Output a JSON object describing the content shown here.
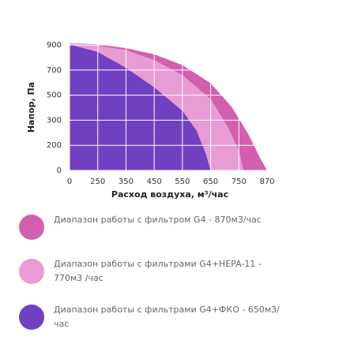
{
  "chart_data": {
    "type": "area",
    "x_label": "Расход воздуха, м³/час",
    "y_label": "Напор, Па",
    "xlim": [
      0,
      870
    ],
    "ylim": [
      0,
      900
    ],
    "xticks": [
      0,
      250,
      350,
      450,
      550,
      650,
      750,
      870
    ],
    "yticks": [
      0,
      200,
      300,
      500,
      700,
      900
    ],
    "grid": true,
    "series": [
      {
        "name": "Диапазон работы с фильтром G4 - 870м3/час",
        "color": "#d35fae",
        "x": [
          0,
          250,
          350,
          450,
          550,
          650,
          725,
          790,
          840,
          870
        ],
        "values": [
          915,
          905,
          875,
          825,
          740,
          595,
          405,
          245,
          100,
          0
        ]
      },
      {
        "name": "Диапазон работы с фильтрами G4+HEPA-11 - 770м3 /час",
        "color": "#e99cd3",
        "x": [
          0,
          250,
          350,
          450,
          550,
          650,
          710,
          750,
          770
        ],
        "values": [
          915,
          895,
          860,
          780,
          660,
          470,
          275,
          160,
          0
        ]
      },
      {
        "name": "Диапазон работы с фильтрами G4+ФКО - 650м3/ час",
        "color": "#7140c0",
        "x": [
          0,
          250,
          350,
          450,
          550,
          600,
          633,
          650
        ],
        "values": [
          905,
          844,
          718,
          562,
          375,
          259,
          131,
          0
        ]
      }
    ]
  }
}
